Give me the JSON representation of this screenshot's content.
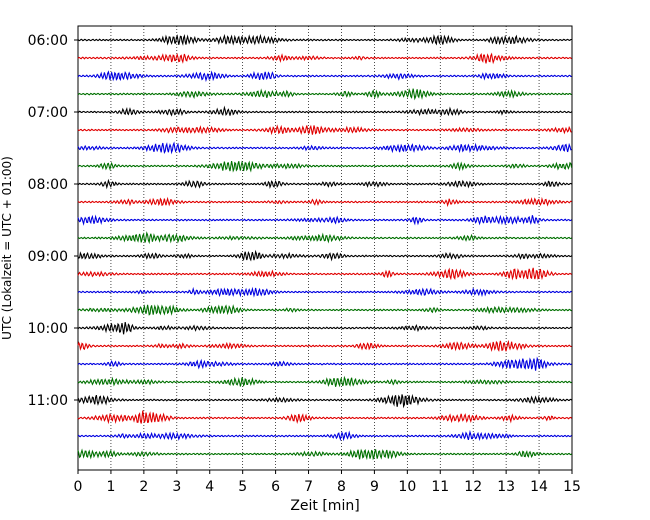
{
  "chart_data": {
    "type": "line",
    "title": "",
    "xlabel": "Zeit  [min]",
    "ylabel": "UTC (Lokalzeit = UTC + 01:00)",
    "xlim": [
      0,
      15
    ],
    "x_ticks": [
      0,
      1,
      2,
      3,
      4,
      5,
      6,
      7,
      8,
      9,
      10,
      11,
      12,
      13,
      14,
      15
    ],
    "y_tick_labels": [
      "06:00",
      "07:00",
      "08:00",
      "09:00",
      "10:00",
      "11:00"
    ],
    "grid": "vertical dotted at each minute",
    "trace_minutes": 15,
    "trace_start": "06:00",
    "trace_end": "11:45",
    "trace_count": 24,
    "trace_colors": [
      "#000000",
      "#e00000",
      "#0000e0",
      "#007000"
    ]
  }
}
